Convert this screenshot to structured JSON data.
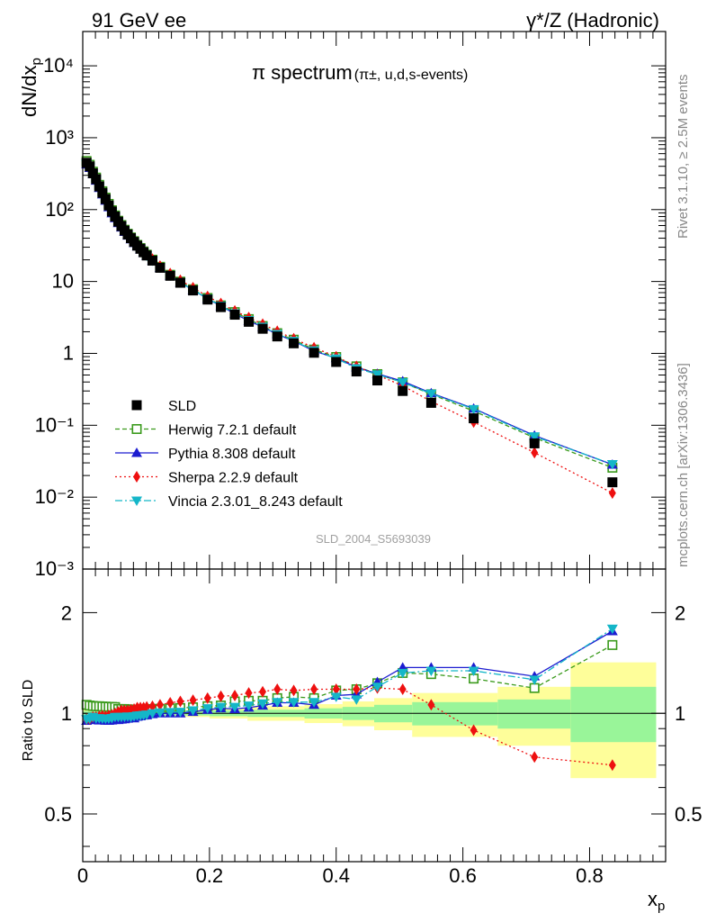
{
  "header": {
    "left": "91 GeV ee",
    "right_prefix": "γ*/Z",
    "right_suffix": "(Hadronic)"
  },
  "title_main": "π spectrum",
  "title_sub": "(π±, u,d,s-events)",
  "side_rivet": "Rivet 3.1.10, ≥ 2.5M events",
  "side_mcplots": "mcplots.cern.ch [arXiv:1306.3436]",
  "analysis_ref": "SLD_2004_S5693039",
  "axes": {
    "ylabel_top": "dN/dx",
    "ylabel_top_sub": "p",
    "ylabel_bottom": "Ratio to SLD",
    "xlabel": "x",
    "xlabel_sub": "p"
  },
  "colors": {
    "SLD": "#000000",
    "Herwig": "#3a9a1c",
    "Pythia": "#1c1cd0",
    "Sherpa": "#ee1010",
    "Vincia": "#14b6c8",
    "band_inner": "#99f599",
    "band_outer": "#fefe9a"
  },
  "chart_data": [
    {
      "type": "scatter",
      "panel": "main",
      "log_y": true,
      "xlim": [
        0,
        0.92
      ],
      "ylim": [
        0.001,
        30000
      ],
      "x_ticks": [
        "0",
        "0.2",
        "0.4",
        "0.6",
        "0.8"
      ],
      "x": [
        0.006,
        0.011,
        0.016,
        0.021,
        0.026,
        0.031,
        0.036,
        0.041,
        0.046,
        0.051,
        0.056,
        0.061,
        0.066,
        0.071,
        0.076,
        0.081,
        0.086,
        0.091,
        0.096,
        0.101,
        0.11,
        0.122,
        0.138,
        0.154,
        0.174,
        0.197,
        0.218,
        0.24,
        0.262,
        0.284,
        0.307,
        0.333,
        0.365,
        0.4,
        0.432,
        0.465,
        0.505,
        0.55,
        0.617,
        0.713,
        0.836
      ],
      "series": [
        {
          "name": "SLD",
          "values": [
            448,
            399,
            320,
            265,
            210,
            171,
            140,
            114,
            94,
            80,
            68,
            59,
            51,
            45,
            40,
            35.5,
            31.5,
            28.5,
            25.5,
            23,
            19.5,
            15.5,
            12,
            9.6,
            7.5,
            5.6,
            4.4,
            3.45,
            2.75,
            2.2,
            1.72,
            1.38,
            1.02,
            0.76,
            0.56,
            0.42,
            0.3,
            0.205,
            0.125,
            0.056,
            0.0161
          ]
        },
        {
          "name": "Herwig 7.2.1 default",
          "values": [
            474,
            420,
            337,
            279,
            221,
            180,
            147,
            120,
            98,
            83,
            70,
            61,
            52.5,
            46.2,
            41,
            36.4,
            32.3,
            29.2,
            26.2,
            23.6,
            20.1,
            16,
            12.4,
            9.95,
            7.8,
            5.9,
            4.65,
            3.75,
            3,
            2.4,
            1.91,
            1.55,
            1.13,
            0.89,
            0.66,
            0.515,
            0.395,
            0.27,
            0.158,
            0.067,
            0.0257
          ]
        },
        {
          "name": "Pythia 8.308 default",
          "values": [
            425,
            380,
            310,
            253,
            200,
            163,
            133,
            108,
            89,
            76,
            65,
            56.5,
            49,
            43.5,
            38.7,
            34.3,
            30.8,
            27.9,
            25.1,
            22.7,
            19.4,
            15.5,
            12,
            9.65,
            7.6,
            5.75,
            4.55,
            3.55,
            2.85,
            2.32,
            1.85,
            1.48,
            1.08,
            0.86,
            0.64,
            0.52,
            0.41,
            0.28,
            0.171,
            0.072,
            0.0284
          ]
        },
        {
          "name": "Sherpa 2.2.9 default",
          "values": [
            430,
            384,
            312,
            258,
            206,
            168,
            137,
            112,
            93,
            80,
            69,
            60,
            52,
            46,
            41,
            36.6,
            32.7,
            29.6,
            26.6,
            24,
            20.5,
            16.4,
            12.9,
            10.4,
            8.2,
            6.2,
            4.95,
            3.9,
            3.15,
            2.55,
            2.03,
            1.6,
            1.2,
            0.9,
            0.66,
            0.5,
            0.355,
            0.215,
            0.111,
            0.0416,
            0.0114
          ]
        },
        {
          "name": "Vincia 2.3.01_8.243 default",
          "values": [
            430,
            385,
            312,
            256,
            203,
            165,
            135,
            110,
            91,
            78,
            66,
            57.5,
            49.8,
            44,
            39,
            34.8,
            31,
            28.1,
            25.2,
            22.8,
            19.5,
            15.6,
            12.1,
            9.7,
            7.65,
            5.8,
            4.6,
            3.6,
            2.9,
            2.35,
            1.86,
            1.49,
            1.1,
            0.85,
            0.62,
            0.51,
            0.395,
            0.275,
            0.168,
            0.07,
            0.0288
          ]
        }
      ],
      "legend": [
        "SLD",
        "Herwig 7.2.1 default",
        "Pythia 8.308 default",
        "Sherpa 2.2.9 default",
        "Vincia 2.3.01_8.243 default"
      ],
      "legend_position": "bottom-left",
      "y_tick_labels": [
        "10⁻³",
        "10⁻²",
        "10⁻¹",
        "1",
        "10",
        "10²",
        "10³",
        "10⁴"
      ]
    },
    {
      "type": "line",
      "panel": "ratio",
      "log_y": true,
      "xlim": [
        0,
        0.92
      ],
      "ylim": [
        0.36,
        2.7
      ],
      "y_ticks": [
        "0.5",
        "1",
        "2"
      ],
      "x": [
        0.006,
        0.011,
        0.016,
        0.021,
        0.026,
        0.031,
        0.036,
        0.041,
        0.046,
        0.051,
        0.056,
        0.061,
        0.066,
        0.071,
        0.076,
        0.081,
        0.086,
        0.091,
        0.096,
        0.101,
        0.11,
        0.122,
        0.138,
        0.154,
        0.174,
        0.197,
        0.218,
        0.24,
        0.262,
        0.284,
        0.307,
        0.333,
        0.365,
        0.4,
        0.432,
        0.465,
        0.505,
        0.55,
        0.617,
        0.713,
        0.836
      ],
      "series": [
        {
          "name": "Herwig 7.2.1 default",
          "values": [
            1.06,
            1.055,
            1.052,
            1.05,
            1.05,
            1.048,
            1.047,
            1.046,
            1.045,
            1.044,
            1.03,
            1.03,
            1.03,
            1.028,
            1.026,
            1.025,
            1.025,
            1.024,
            1.025,
            1.026,
            1.03,
            1.032,
            1.035,
            1.037,
            1.042,
            1.05,
            1.055,
            1.085,
            1.09,
            1.09,
            1.11,
            1.12,
            1.11,
            1.17,
            1.18,
            1.23,
            1.32,
            1.31,
            1.27,
            1.19,
            1.6
          ]
        },
        {
          "name": "Pythia 8.308 default",
          "values": [
            0.95,
            0.955,
            0.97,
            0.955,
            0.952,
            0.953,
            0.951,
            0.95,
            0.952,
            0.955,
            0.955,
            0.958,
            0.96,
            0.964,
            0.968,
            0.966,
            0.977,
            0.98,
            0.985,
            0.987,
            0.994,
            1,
            1,
            1,
            1.01,
            1.025,
            1.035,
            1.03,
            1.04,
            1.055,
            1.075,
            1.075,
            1.06,
            1.13,
            1.14,
            1.24,
            1.37,
            1.37,
            1.37,
            1.29,
            1.76
          ]
        },
        {
          "name": "Sherpa 2.2.9 default",
          "values": [
            0.96,
            0.962,
            0.975,
            0.975,
            0.98,
            0.983,
            0.98,
            0.985,
            0.99,
            1,
            1.01,
            1.02,
            1.02,
            1.02,
            1.025,
            1.03,
            1.04,
            1.04,
            1.04,
            1.045,
            1.05,
            1.06,
            1.075,
            1.085,
            1.095,
            1.11,
            1.125,
            1.13,
            1.15,
            1.16,
            1.18,
            1.17,
            1.18,
            1.18,
            1.18,
            1.19,
            1.18,
            1.06,
            0.89,
            0.74,
            0.7
          ]
        },
        {
          "name": "Vincia 2.3.01_8.243 default",
          "values": [
            0.96,
            0.965,
            0.975,
            0.966,
            0.967,
            0.965,
            0.964,
            0.965,
            0.968,
            0.975,
            0.975,
            0.975,
            0.976,
            0.978,
            0.975,
            0.98,
            0.984,
            0.986,
            0.988,
            0.991,
            1,
            1.006,
            1.008,
            1.01,
            1.02,
            1.035,
            1.045,
            1.045,
            1.055,
            1.07,
            1.08,
            1.08,
            1.08,
            1.12,
            1.1,
            1.2,
            1.32,
            1.34,
            1.34,
            1.26,
            1.79
          ]
        }
      ],
      "bands": [
        {
          "x0": 0.0,
          "x1": 0.2,
          "inner": [
            0.985,
            1.015
          ],
          "outer": [
            0.975,
            1.025
          ]
        },
        {
          "x0": 0.2,
          "x1": 0.26,
          "inner": [
            0.98,
            1.02
          ],
          "outer": [
            0.965,
            1.035
          ]
        },
        {
          "x0": 0.26,
          "x1": 0.35,
          "inner": [
            0.975,
            1.025
          ],
          "outer": [
            0.95,
            1.05
          ]
        },
        {
          "x0": 0.35,
          "x1": 0.41,
          "inner": [
            0.965,
            1.035
          ],
          "outer": [
            0.935,
            1.065
          ]
        },
        {
          "x0": 0.41,
          "x1": 0.46,
          "inner": [
            0.955,
            1.045
          ],
          "outer": [
            0.915,
            1.085
          ]
        },
        {
          "x0": 0.46,
          "x1": 0.52,
          "inner": [
            0.94,
            1.06
          ],
          "outer": [
            0.89,
            1.11
          ]
        },
        {
          "x0": 0.52,
          "x1": 0.655,
          "inner": [
            0.92,
            1.08
          ],
          "outer": [
            0.85,
            1.15
          ]
        },
        {
          "x0": 0.655,
          "x1": 0.77,
          "inner": [
            0.9,
            1.1
          ],
          "outer": [
            0.8,
            1.2
          ]
        },
        {
          "x0": 0.77,
          "x1": 0.905,
          "inner": [
            0.82,
            1.2
          ],
          "outer": [
            0.64,
            1.42
          ]
        }
      ]
    }
  ]
}
